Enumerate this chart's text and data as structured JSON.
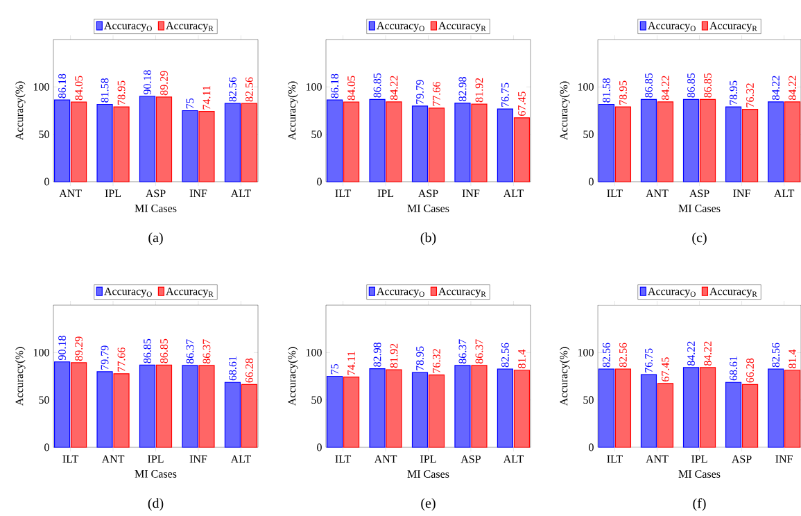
{
  "chart_data": [
    {
      "type": "bar",
      "categories": [
        "ANT",
        "IPL",
        "ASP",
        "INF",
        "ALT"
      ],
      "xlabel": "MI Cases",
      "ylabel": "Accuracy(%)",
      "ylim": [
        0,
        150
      ],
      "yticks": [
        0,
        50,
        100
      ],
      "legend": "top",
      "data_labels": true,
      "annotations": [
        "(a)"
      ],
      "series": [
        {
          "name": "Accuracy$_{O}$",
          "color": "#0000ff",
          "values": [
            86.18,
            81.58,
            90.18,
            75,
            82.56
          ]
        },
        {
          "name": "Accuracy$_{R}$",
          "color": "#ff0000",
          "values": [
            84.05,
            78.95,
            89.29,
            74.11,
            82.56
          ]
        }
      ]
    },
    {
      "type": "bar",
      "categories": [
        "ILT",
        "IPL",
        "ASP",
        "INF",
        "ALT"
      ],
      "xlabel": "MI Cases",
      "ylabel": "Accuracy(%)",
      "ylim": [
        0,
        150
      ],
      "yticks": [
        0,
        50,
        100
      ],
      "legend": "top",
      "data_labels": true,
      "annotations": [
        "(b)"
      ],
      "series": [
        {
          "name": "Accuracy$_{O}$",
          "color": "#0000ff",
          "values": [
            86.18,
            86.85,
            79.79,
            82.98,
            76.75
          ]
        },
        {
          "name": "Accuracy$_{R}$",
          "color": "#ff0000",
          "values": [
            84.05,
            84.22,
            77.66,
            81.92,
            67.45
          ]
        }
      ]
    },
    {
      "type": "bar",
      "categories": [
        "ILT",
        "ANT",
        "ASP",
        "INF",
        "ALT"
      ],
      "xlabel": "MI Cases",
      "ylabel": "Accuracy(%)",
      "ylim": [
        0,
        150
      ],
      "yticks": [
        0,
        50,
        100
      ],
      "legend": "top",
      "data_labels": true,
      "annotations": [
        "(c)"
      ],
      "series": [
        {
          "name": "Accuracy$_{O}$",
          "color": "#0000ff",
          "values": [
            81.58,
            86.85,
            86.85,
            78.95,
            84.22
          ]
        },
        {
          "name": "Accuracy$_{R}$",
          "color": "#ff0000",
          "values": [
            78.95,
            84.22,
            86.85,
            76.32,
            84.22
          ]
        }
      ]
    },
    {
      "type": "bar",
      "categories": [
        "ILT",
        "ANT",
        "IPL",
        "INF",
        "ALT"
      ],
      "xlabel": "MI Cases",
      "ylabel": "Accuracy(%)",
      "ylim": [
        0,
        150
      ],
      "yticks": [
        0,
        50,
        100
      ],
      "legend": "top",
      "data_labels": true,
      "annotations": [
        "(d)"
      ],
      "series": [
        {
          "name": "Accuracy$_{O}$",
          "color": "#0000ff",
          "values": [
            90.18,
            79.79,
            86.85,
            86.37,
            68.61
          ]
        },
        {
          "name": "Accuracy$_{R}$",
          "color": "#ff0000",
          "values": [
            89.29,
            77.66,
            86.85,
            86.37,
            66.28
          ]
        }
      ]
    },
    {
      "type": "bar",
      "categories": [
        "ILT",
        "ANT",
        "IPL",
        "ASP",
        "ALT"
      ],
      "xlabel": "MI Cases",
      "ylabel": "Accuracy(%)",
      "ylim": [
        0,
        150
      ],
      "yticks": [
        0,
        50,
        100
      ],
      "legend": "top",
      "data_labels": true,
      "annotations": [
        "(e)"
      ],
      "series": [
        {
          "name": "Accuracy$_{O}$",
          "color": "#0000ff",
          "values": [
            75,
            82.98,
            78.95,
            86.37,
            82.56
          ]
        },
        {
          "name": "Accuracy$_{R}$",
          "color": "#ff0000",
          "values": [
            74.11,
            81.92,
            76.32,
            86.37,
            81.4
          ]
        }
      ]
    },
    {
      "type": "bar",
      "categories": [
        "ILT",
        "ANT",
        "IPL",
        "ASP",
        "INF"
      ],
      "xlabel": "MI Cases",
      "ylabel": "Accuracy(%)",
      "ylim": [
        0,
        150
      ],
      "yticks": [
        0,
        50,
        100
      ],
      "legend": "top",
      "data_labels": true,
      "annotations": [
        "(f)"
      ],
      "series": [
        {
          "name": "Accuracy$_{O}$",
          "color": "#0000ff",
          "values": [
            82.56,
            76.75,
            84.22,
            68.61,
            82.56
          ]
        },
        {
          "name": "Accuracy$_{R}$",
          "color": "#ff0000",
          "values": [
            82.56,
            67.45,
            84.22,
            66.28,
            81.4
          ]
        }
      ]
    }
  ]
}
